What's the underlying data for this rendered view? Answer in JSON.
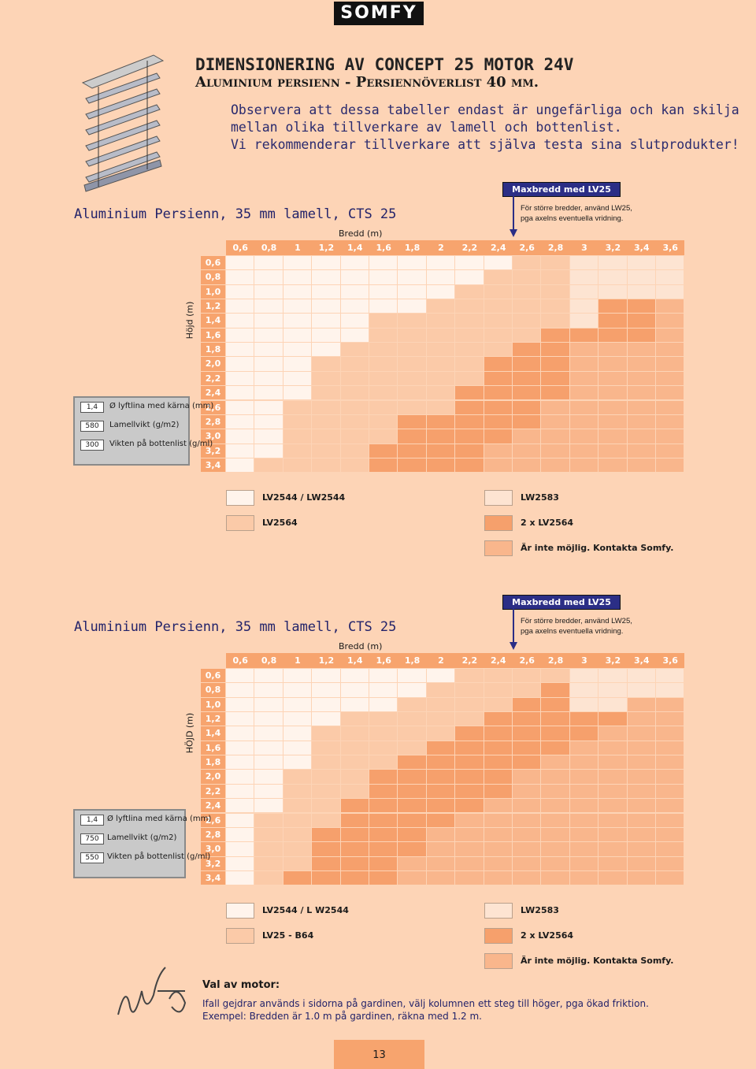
{
  "logo": "SOMFY",
  "header": {
    "title": "DIMENSIONERING AV CONCEPT 25 MOTOR 24V",
    "subtitle": "Aluminium persienn - Persiennöverlist 40 mm.",
    "notes": [
      "Observera att dessa tabeller endast är ungefärliga och kan skilja",
      "mellan olika tillverkare av lamell och bottenlist.",
      "Vi rekommenderar tillverkare att själva testa sina slutprodukter!"
    ]
  },
  "tables": [
    {
      "badge": "Maxbredd med LV25",
      "badge_note": [
        "För större bredder, använd LW25,",
        "pga axelns eventuella vridning."
      ],
      "title": "Aluminium Persienn, 35 mm lamell, CTS 25",
      "x_label": "Bredd (m)",
      "y_label": "Höjd (m)",
      "columns": [
        "0,6",
        "0,8",
        "1",
        "1,2",
        "1,4",
        "1,6",
        "1,8",
        "2",
        "2,2",
        "2,4",
        "2,6",
        "2,8",
        "3",
        "3,2",
        "3,4",
        "3,6"
      ],
      "rows": [
        "0,6",
        "0,8",
        "1,0",
        "1,2",
        "1,4",
        "1,6",
        "1,8",
        "2,0",
        "2,2",
        "2,4",
        "2,6",
        "2,8",
        "3,0",
        "3,2",
        "3,4"
      ],
      "specs": [
        {
          "value": "1,4",
          "label": "Ø lyftlina med kärna (mm)"
        },
        {
          "value": "580",
          "label": "Lamellvikt (g/m2)"
        },
        {
          "value": "300",
          "label": "Vikten på bottenlist (g/ml)"
        }
      ],
      "cells": [
        [
          0,
          0,
          0,
          0,
          0,
          0,
          0,
          0,
          0,
          0,
          1,
          1,
          2,
          2,
          2,
          2
        ],
        [
          0,
          0,
          0,
          0,
          0,
          0,
          0,
          0,
          0,
          1,
          1,
          1,
          2,
          2,
          2,
          2
        ],
        [
          0,
          0,
          0,
          0,
          0,
          0,
          0,
          0,
          1,
          1,
          1,
          1,
          2,
          2,
          2,
          2
        ],
        [
          0,
          0,
          0,
          0,
          0,
          0,
          0,
          1,
          1,
          1,
          1,
          1,
          2,
          3,
          3,
          4
        ],
        [
          0,
          0,
          0,
          0,
          0,
          1,
          1,
          1,
          1,
          1,
          1,
          1,
          2,
          3,
          3,
          4
        ],
        [
          0,
          0,
          0,
          0,
          0,
          1,
          1,
          1,
          1,
          1,
          1,
          3,
          3,
          3,
          3,
          4
        ],
        [
          0,
          0,
          0,
          0,
          1,
          1,
          1,
          1,
          1,
          1,
          3,
          3,
          4,
          4,
          4,
          4
        ],
        [
          0,
          0,
          0,
          1,
          1,
          1,
          1,
          1,
          1,
          3,
          3,
          3,
          4,
          4,
          4,
          4
        ],
        [
          0,
          0,
          0,
          1,
          1,
          1,
          1,
          1,
          1,
          3,
          3,
          3,
          4,
          4,
          4,
          4
        ],
        [
          0,
          0,
          0,
          1,
          1,
          1,
          1,
          1,
          3,
          3,
          3,
          3,
          4,
          4,
          4,
          4
        ],
        [
          0,
          0,
          1,
          1,
          1,
          1,
          1,
          1,
          3,
          3,
          3,
          4,
          4,
          4,
          4,
          4
        ],
        [
          0,
          0,
          1,
          1,
          1,
          1,
          3,
          3,
          3,
          3,
          3,
          4,
          4,
          4,
          4,
          4
        ],
        [
          0,
          0,
          1,
          1,
          1,
          1,
          3,
          3,
          3,
          3,
          4,
          4,
          4,
          4,
          4,
          4
        ],
        [
          0,
          0,
          1,
          1,
          1,
          3,
          3,
          3,
          3,
          4,
          4,
          4,
          4,
          4,
          4,
          4
        ],
        [
          0,
          1,
          1,
          1,
          1,
          3,
          3,
          3,
          3,
          4,
          4,
          4,
          4,
          4,
          4,
          4
        ]
      ],
      "legend": [
        {
          "label": "LV2544 / LW2544",
          "color": "#fff4ec"
        },
        {
          "label": "LV2564",
          "color": "#fbcaa8"
        },
        {
          "label": "LW2583",
          "color": "#fde4d2"
        },
        {
          "label": "2 x LV2564",
          "color": "#f6a06c"
        },
        {
          "label": "Är inte möjlig. Kontakta Somfy.",
          "color": "#f9b68c"
        }
      ]
    },
    {
      "badge": "Maxbredd med LV25",
      "badge_note": [
        "För större bredder, använd LW25,",
        "pga axelns eventuella vridning."
      ],
      "title": "Aluminium Persienn, 35 mm lamell, CTS 25",
      "x_label": "Bredd (m)",
      "y_label": "HÖJD (m)",
      "columns": [
        "0,6",
        "0,8",
        "1",
        "1,2",
        "1,4",
        "1,6",
        "1,8",
        "2",
        "2,2",
        "2,4",
        "2,6",
        "2,8",
        "3",
        "3,2",
        "3,4",
        "3,6"
      ],
      "rows": [
        "0,6",
        "0,8",
        "1,0",
        "1,2",
        "1,4",
        "1,6",
        "1,8",
        "2,0",
        "2,2",
        "2,4",
        "2,6",
        "2,8",
        "3,0",
        "3,2",
        "3,4"
      ],
      "specs": [
        {
          "value": "1,4",
          "label": "Ø lyftlina med kärna (mm)"
        },
        {
          "value": "750",
          "label": "Lamellvikt (g/m2)"
        },
        {
          "value": "550",
          "label": "Vikten på bottenlist (g/ml)"
        }
      ],
      "cells": [
        [
          0,
          0,
          0,
          0,
          0,
          0,
          0,
          0,
          1,
          1,
          1,
          1,
          2,
          2,
          2,
          2
        ],
        [
          0,
          0,
          0,
          0,
          0,
          0,
          0,
          1,
          1,
          1,
          1,
          3,
          2,
          2,
          2,
          2
        ],
        [
          0,
          0,
          0,
          0,
          0,
          0,
          1,
          1,
          1,
          1,
          3,
          3,
          2,
          2,
          4,
          4
        ],
        [
          0,
          0,
          0,
          0,
          1,
          1,
          1,
          1,
          1,
          3,
          3,
          3,
          3,
          3,
          4,
          4
        ],
        [
          0,
          0,
          0,
          1,
          1,
          1,
          1,
          1,
          3,
          3,
          3,
          3,
          3,
          4,
          4,
          4
        ],
        [
          0,
          0,
          0,
          1,
          1,
          1,
          1,
          3,
          3,
          3,
          3,
          3,
          4,
          4,
          4,
          4
        ],
        [
          0,
          0,
          0,
          1,
          1,
          1,
          3,
          3,
          3,
          3,
          3,
          4,
          4,
          4,
          4,
          4
        ],
        [
          0,
          0,
          1,
          1,
          1,
          3,
          3,
          3,
          3,
          3,
          4,
          4,
          4,
          4,
          4,
          4
        ],
        [
          0,
          0,
          1,
          1,
          1,
          3,
          3,
          3,
          3,
          3,
          4,
          4,
          4,
          4,
          4,
          4
        ],
        [
          0,
          0,
          1,
          1,
          3,
          3,
          3,
          3,
          3,
          4,
          4,
          4,
          4,
          4,
          4,
          4
        ],
        [
          0,
          1,
          1,
          1,
          3,
          3,
          3,
          3,
          4,
          4,
          4,
          4,
          4,
          4,
          4,
          4
        ],
        [
          0,
          1,
          1,
          3,
          3,
          3,
          3,
          4,
          4,
          4,
          4,
          4,
          4,
          4,
          4,
          4
        ],
        [
          0,
          1,
          1,
          3,
          3,
          3,
          3,
          4,
          4,
          4,
          4,
          4,
          4,
          4,
          4,
          4
        ],
        [
          0,
          1,
          1,
          3,
          3,
          3,
          4,
          4,
          4,
          4,
          4,
          4,
          4,
          4,
          4,
          4
        ],
        [
          0,
          1,
          3,
          3,
          3,
          3,
          4,
          4,
          4,
          4,
          4,
          4,
          4,
          4,
          4,
          4
        ]
      ],
      "legend": [
        {
          "label": "LV2544 / L W2544",
          "color": "#fff4ec"
        },
        {
          "label": "LV25 - B64",
          "color": "#fbcaa8"
        },
        {
          "label": "LW2583",
          "color": "#fde4d2"
        },
        {
          "label": "2 x LV2564",
          "color": "#f6a06c"
        },
        {
          "label": "Är inte möjlig. Kontakta Somfy.",
          "color": "#f9b68c"
        }
      ]
    }
  ],
  "info": {
    "title": "Val av motor:",
    "lines": [
      "Ifall gejdrar används i sidorna på gardinen, välj kolumnen ett steg till höger, pga ökad friktion.",
      "Exempel: Bredden är 1.0 m på gardinen, räkna med 1.2 m."
    ]
  },
  "page_number": "13"
}
